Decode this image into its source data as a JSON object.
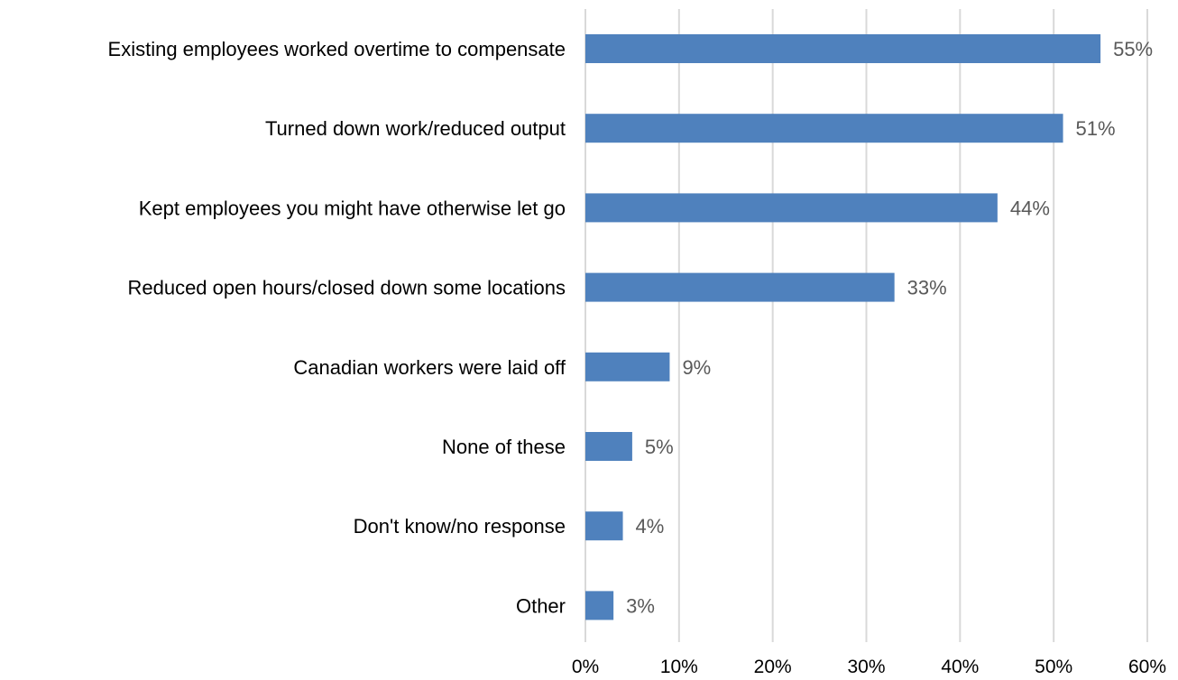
{
  "chart_data": {
    "type": "bar",
    "orientation": "horizontal",
    "title": "",
    "xlabel": "",
    "ylabel": "",
    "categories": [
      "Existing employees worked overtime to compensate",
      "Turned down work/reduced output",
      "Kept employees you might have otherwise let go",
      "Reduced open hours/closed down some locations",
      "Canadian workers were laid off",
      "None of these",
      "Don't know/no response",
      "Other"
    ],
    "values": [
      55,
      51,
      44,
      33,
      9,
      5,
      4,
      3
    ],
    "data_labels": [
      "55%",
      "51%",
      "44%",
      "33%",
      "9%",
      "5%",
      "4%",
      "3%"
    ],
    "xlim": [
      0,
      60
    ],
    "x_ticks": [
      0,
      10,
      20,
      30,
      40,
      50,
      60
    ],
    "x_tick_labels": [
      "0%",
      "10%",
      "20%",
      "30%",
      "40%",
      "50%",
      "60%"
    ],
    "grid": "vertical",
    "legend": "none",
    "colors": {
      "bar": "#4f81bd",
      "grid": "#d9d9d9",
      "data_label": "#595959",
      "text": "#000000"
    }
  }
}
